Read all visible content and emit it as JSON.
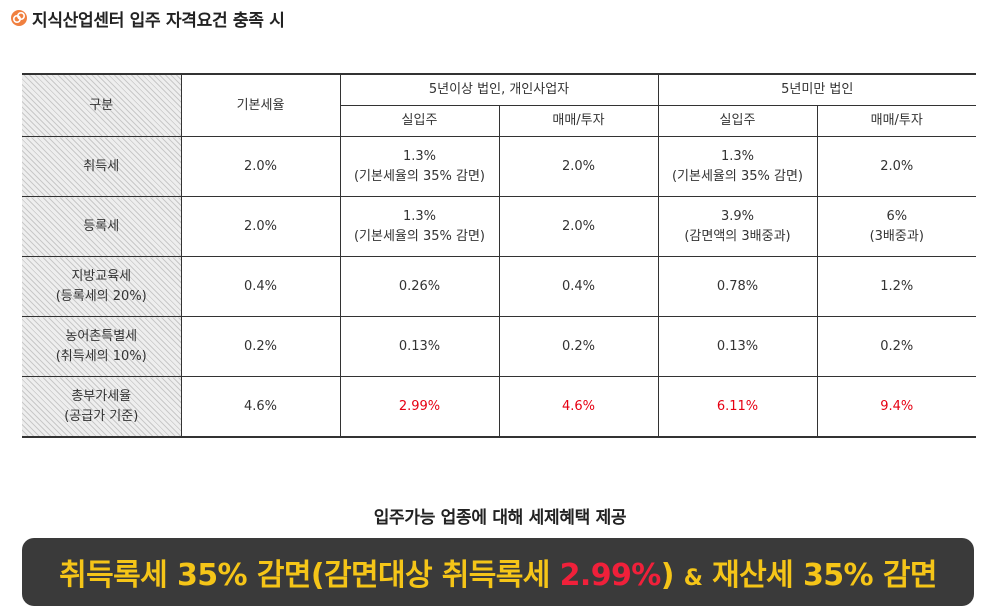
{
  "heading": "지식산업센터 입주 자격요건 충족 시",
  "colors": {
    "highlight_red": "#e60012",
    "banner_bg": "#3a3a3a",
    "banner_text": "#f5c518",
    "banner_red": "#f0203a"
  },
  "table": {
    "h_category": "구분",
    "h_base": "기본세율",
    "group1": "5년이상 법인, 개인사업자",
    "group2": "5년미만 법인",
    "g1_a": "실입주",
    "g1_b": "매매/투자",
    "g2_a": "실입주",
    "g2_b": "매매/투자",
    "rows": [
      {
        "label1": "취득세",
        "label2": "",
        "base": "2.0%",
        "g1a1": "1.3%",
        "g1a2": "(기본세율의 35% 감면)",
        "g1b1": "2.0%",
        "g1b2": "",
        "g2a1": "1.3%",
        "g2a2": "(기본세율의 35% 감면)",
        "g2b1": "2.0%",
        "g2b2": ""
      },
      {
        "label1": "등록세",
        "label2": "",
        "base": "2.0%",
        "g1a1": "1.3%",
        "g1a2": "(기본세율의 35% 감면)",
        "g1b1": "2.0%",
        "g1b2": "",
        "g2a1": "3.9%",
        "g2a2": "(감면액의 3배중과)",
        "g2b1": "6%",
        "g2b2": "(3배중과)"
      },
      {
        "label1": "지방교육세",
        "label2": "(등록세의 20%)",
        "base": "0.4%",
        "g1a1": "0.26%",
        "g1a2": "",
        "g1b1": "0.4%",
        "g1b2": "",
        "g2a1": "0.78%",
        "g2a2": "",
        "g2b1": "1.2%",
        "g2b2": ""
      },
      {
        "label1": "농어촌특별세",
        "label2": "(취득세의 10%)",
        "base": "0.2%",
        "g1a1": "0.13%",
        "g1a2": "",
        "g1b1": "0.2%",
        "g1b2": "",
        "g2a1": "0.13%",
        "g2a2": "",
        "g2b1": "0.2%",
        "g2b2": ""
      },
      {
        "label1": "총부가세율",
        "label2": "(공급가 기준)",
        "base": "4.6%",
        "g1a1": "2.99%",
        "g1a2": "",
        "g1b1": "4.6%",
        "g1b2": "",
        "g2a1": "6.11%",
        "g2a2": "",
        "g2b1": "9.4%",
        "g2b2": ""
      }
    ]
  },
  "subtitle": "입주가능 업종에 대해 세제혜택 제공",
  "banner": {
    "part1": "취득록세 35% 감면(감면대상 취득록세 ",
    "pct": "2.99%",
    "part2": ") ",
    "amp": "&",
    "part3": " 재산세 35% 감면"
  }
}
